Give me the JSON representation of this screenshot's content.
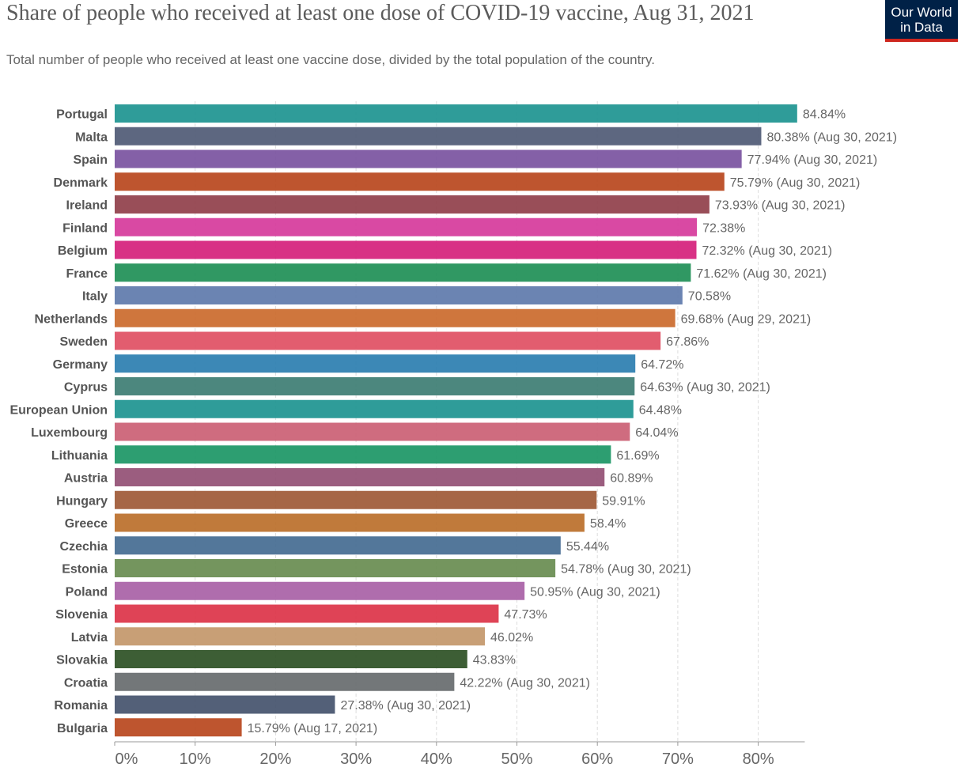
{
  "header": {
    "title": "Share of people who received at least one dose of COVID-19 vaccine, Aug 31, 2021",
    "subtitle": "Total number of people who received at least one vaccine dose, divided by the total population of the country.",
    "logo_line1": "Our World",
    "logo_line2": "in Data"
  },
  "chart_data": {
    "type": "bar",
    "orientation": "horizontal",
    "title": "Share of people who received at least one dose of COVID-19 vaccine, Aug 31, 2021",
    "xlabel": "",
    "ylabel": "",
    "xlim": [
      0,
      85
    ],
    "xticks": [
      0,
      10,
      20,
      30,
      40,
      50,
      60,
      70,
      80
    ],
    "xtick_labels": [
      "0%",
      "10%",
      "20%",
      "30%",
      "40%",
      "50%",
      "60%",
      "70%",
      "80%"
    ],
    "grid": true,
    "categories": [
      "Portugal",
      "Malta",
      "Spain",
      "Denmark",
      "Ireland",
      "Finland",
      "Belgium",
      "France",
      "Italy",
      "Netherlands",
      "Sweden",
      "Germany",
      "Cyprus",
      "European Union",
      "Luxembourg",
      "Lithuania",
      "Austria",
      "Hungary",
      "Greece",
      "Czechia",
      "Estonia",
      "Poland",
      "Slovenia",
      "Latvia",
      "Slovakia",
      "Croatia",
      "Romania",
      "Bulgaria"
    ],
    "values": [
      84.84,
      80.38,
      77.94,
      75.79,
      73.93,
      72.38,
      72.32,
      71.62,
      70.58,
      69.68,
      67.86,
      64.72,
      64.63,
      64.48,
      64.04,
      61.69,
      60.89,
      59.91,
      58.4,
      55.44,
      54.78,
      50.95,
      47.73,
      46.02,
      43.83,
      42.22,
      27.38,
      15.79
    ],
    "labels": [
      "84.84%",
      "80.38% (Aug 30, 2021)",
      "77.94% (Aug 30, 2021)",
      "75.79% (Aug 30, 2021)",
      "73.93% (Aug 30, 2021)",
      "72.38%",
      "72.32% (Aug 30, 2021)",
      "71.62% (Aug 30, 2021)",
      "70.58%",
      "69.68% (Aug 29, 2021)",
      "67.86%",
      "64.72%",
      "64.63% (Aug 30, 2021)",
      "64.48%",
      "64.04%",
      "61.69%",
      "60.89%",
      "59.91%",
      "58.4%",
      "55.44%",
      "54.78% (Aug 30, 2021)",
      "50.95% (Aug 30, 2021)",
      "47.73%",
      "46.02%",
      "43.83%",
      "42.22% (Aug 30, 2021)",
      "27.38% (Aug 30, 2021)",
      "15.79% (Aug 17, 2021)"
    ],
    "colors": [
      "#1d9490",
      "#4f5a75",
      "#7a52a0",
      "#b8461d",
      "#903f4a",
      "#d6399b",
      "#d5207b",
      "#1e8f56",
      "#5e7aab",
      "#cb6a2d",
      "#df4f63",
      "#2b7eb0",
      "#3d7d73",
      "#1d9490",
      "#cb5f74",
      "#1b9665",
      "#934f74",
      "#9e5936",
      "#bb6f2a",
      "#446b91",
      "#688c50",
      "#a861a6",
      "#dc3348",
      "#c3976a",
      "#2c5024",
      "#676b6e",
      "#44536d",
      "#b8461d"
    ]
  }
}
